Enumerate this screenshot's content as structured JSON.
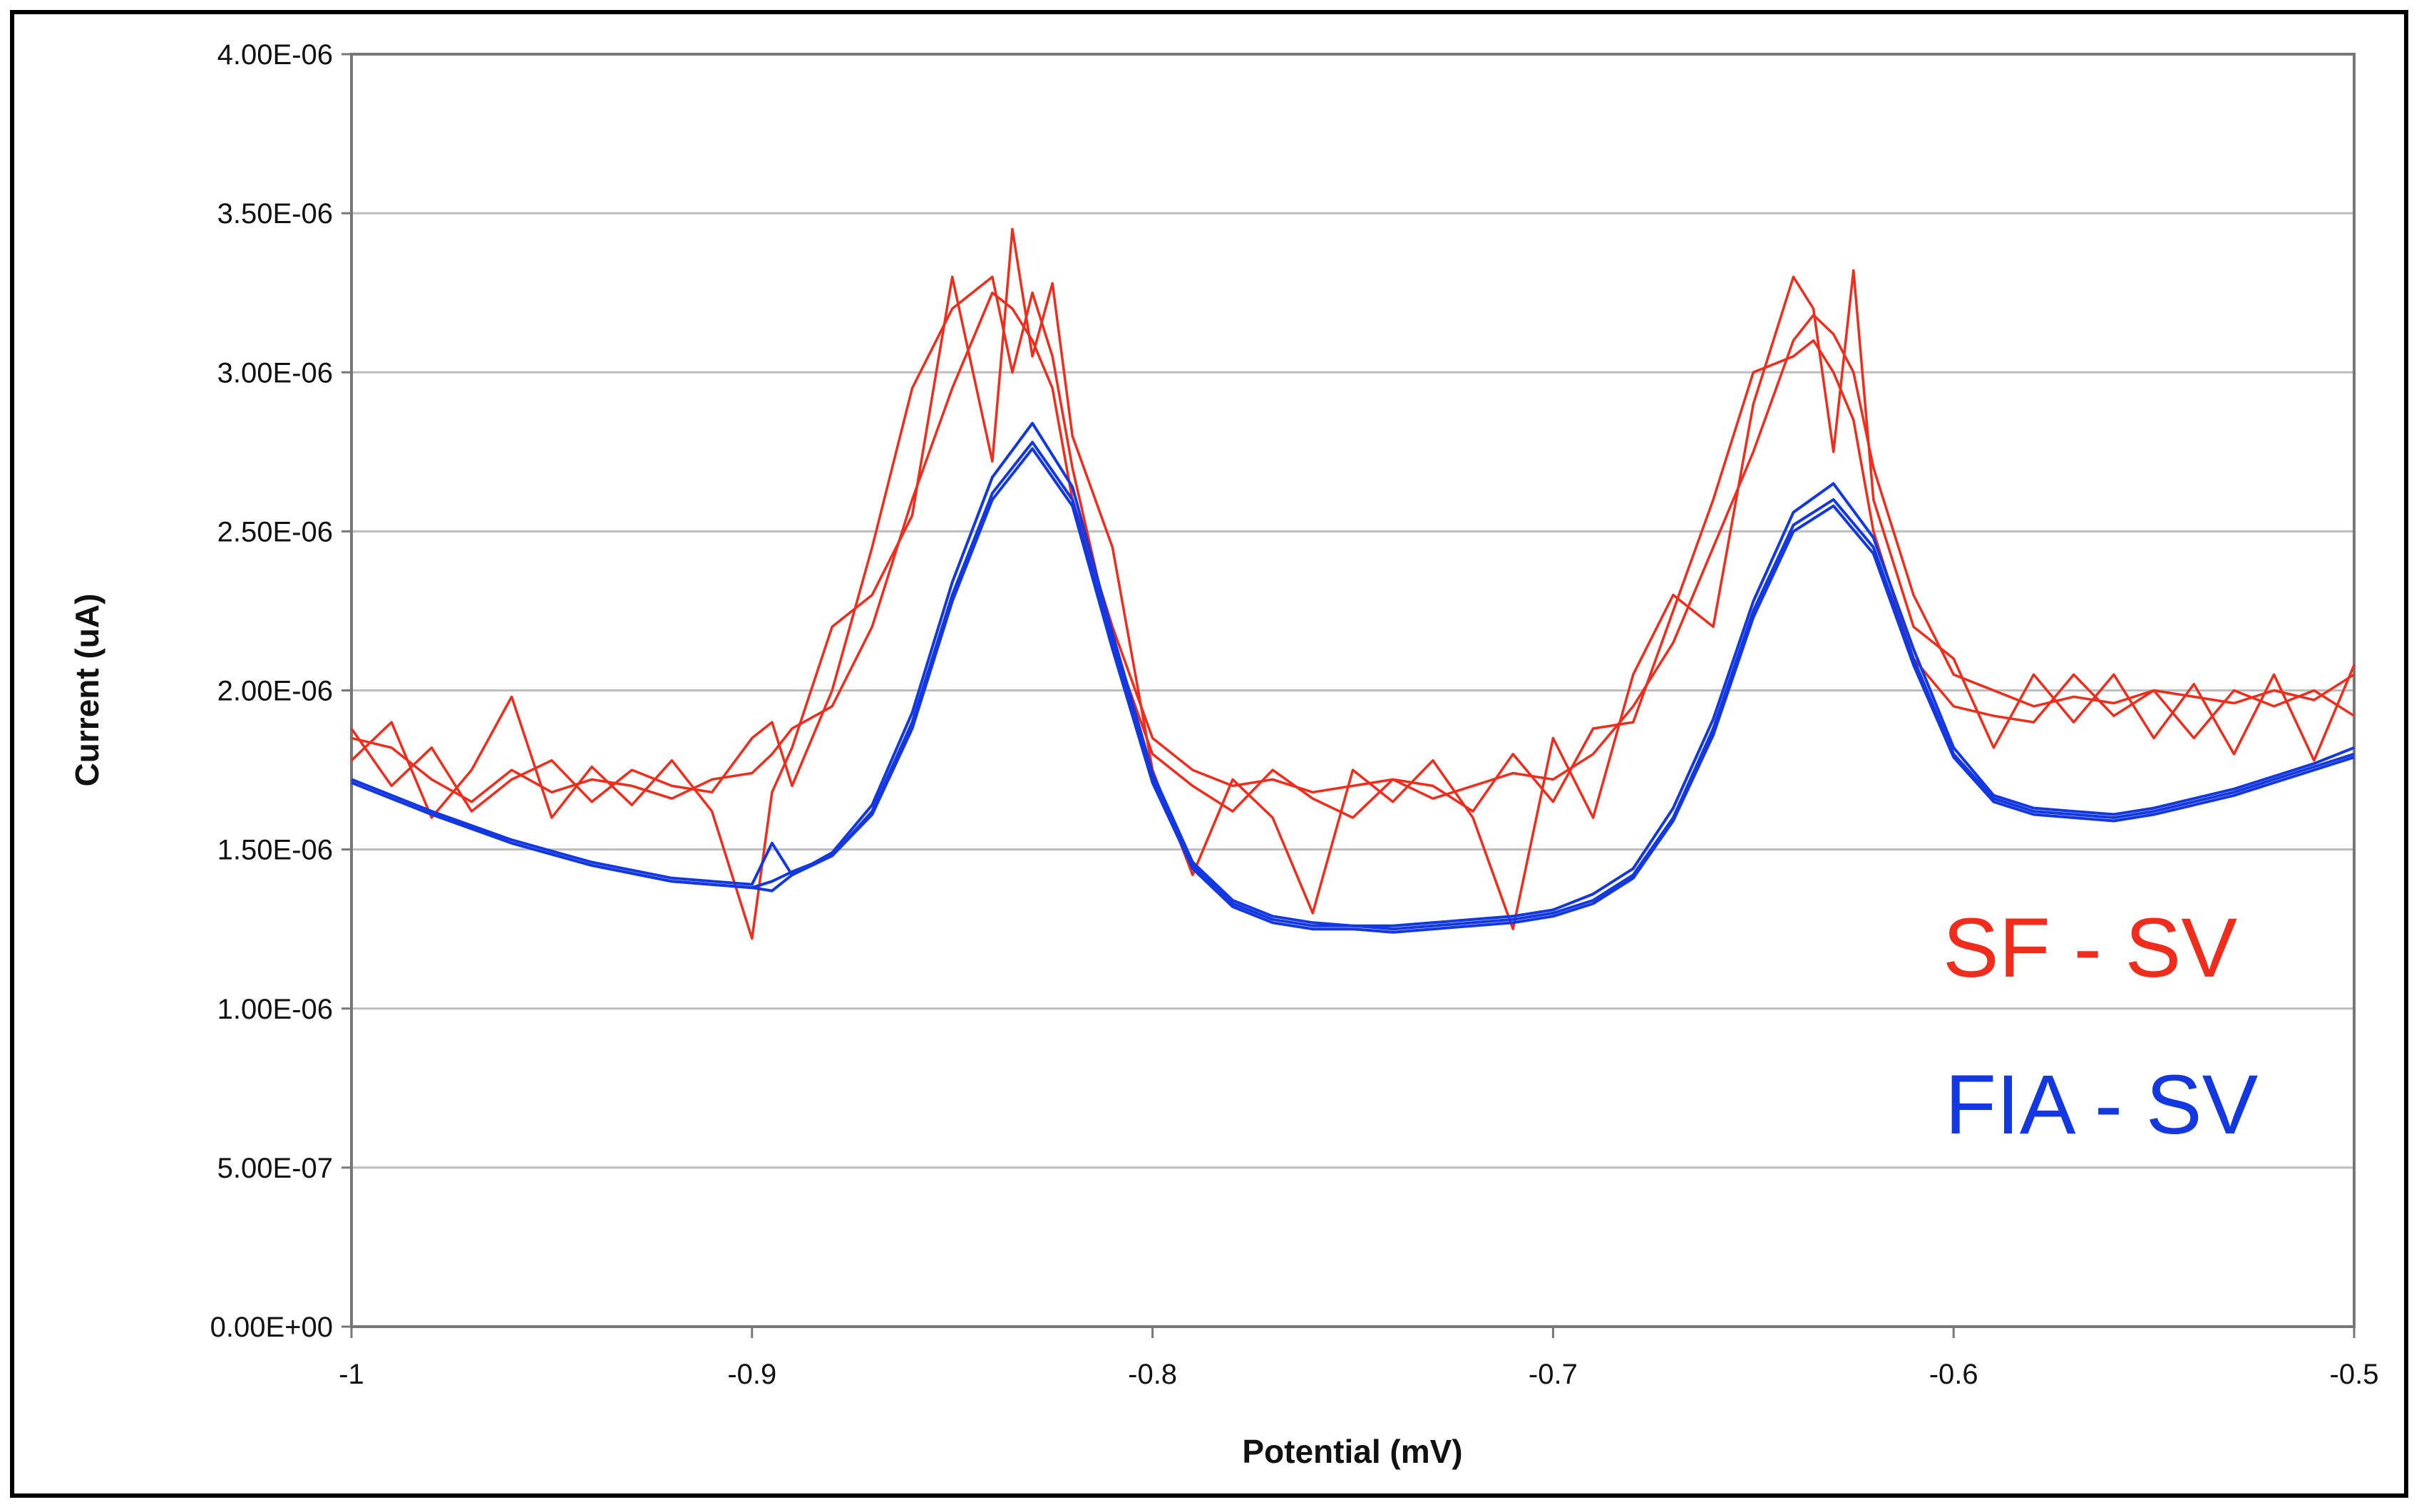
{
  "chart_data": {
    "type": "line",
    "title": "",
    "xlabel": "Potential (mV)",
    "ylabel": "Current (uA)",
    "xlim": [
      -1,
      -0.5
    ],
    "ylim": [
      0,
      4e-06
    ],
    "grid": true,
    "x_ticks": [
      "-1",
      "-0.9",
      "-0.8",
      "-0.7",
      "-0.6",
      "-0.5"
    ],
    "y_ticks": [
      "0.00E+00",
      "5.00E-07",
      "1.00E-06",
      "1.50E-06",
      "2.00E-06",
      "2.50E-06",
      "3.00E-06",
      "3.50E-06",
      "4.00E-06"
    ],
    "legend_position": "right-inside",
    "legend": [
      {
        "label": "SF - SV",
        "color": "#ee2d1c"
      },
      {
        "label": "FIA - SV",
        "color": "#1438e0"
      }
    ],
    "series": [
      {
        "name": "SF - SV run 1",
        "group": "SF - SV",
        "color": "#ee2d1c",
        "x": [
          -1.0,
          -0.99,
          -0.98,
          -0.97,
          -0.96,
          -0.95,
          -0.94,
          -0.93,
          -0.92,
          -0.91,
          -0.9,
          -0.895,
          -0.89,
          -0.88,
          -0.87,
          -0.86,
          -0.85,
          -0.84,
          -0.835,
          -0.83,
          -0.825,
          -0.82,
          -0.81,
          -0.8,
          -0.79,
          -0.78,
          -0.77,
          -0.76,
          -0.75,
          -0.74,
          -0.73,
          -0.72,
          -0.71,
          -0.7,
          -0.69,
          -0.68,
          -0.67,
          -0.66,
          -0.65,
          -0.64,
          -0.635,
          -0.63,
          -0.625,
          -0.62,
          -0.61,
          -0.6,
          -0.59,
          -0.58,
          -0.57,
          -0.56,
          -0.55,
          -0.54,
          -0.53,
          -0.52,
          -0.51,
          -0.5
        ],
        "values": [
          1.85e-06,
          1.82e-06,
          1.72e-06,
          1.65e-06,
          1.75e-06,
          1.68e-06,
          1.72e-06,
          1.7e-06,
          1.66e-06,
          1.72e-06,
          1.74e-06,
          1.8e-06,
          1.88e-06,
          1.95e-06,
          2.2e-06,
          2.6e-06,
          2.95e-06,
          3.25e-06,
          3.2e-06,
          3.1e-06,
          2.95e-06,
          2.6e-06,
          2.2e-06,
          1.85e-06,
          1.75e-06,
          1.7e-06,
          1.72e-06,
          1.68e-06,
          1.7e-06,
          1.72e-06,
          1.66e-06,
          1.7e-06,
          1.74e-06,
          1.72e-06,
          1.8e-06,
          1.95e-06,
          2.15e-06,
          2.45e-06,
          2.75e-06,
          3.1e-06,
          3.18e-06,
          3.12e-06,
          3e-06,
          2.7e-06,
          2.3e-06,
          2.05e-06,
          2e-06,
          1.95e-06,
          1.98e-06,
          1.96e-06,
          2e-06,
          1.98e-06,
          1.96e-06,
          2e-06,
          1.97e-06,
          2.05e-06
        ]
      },
      {
        "name": "SF - SV run 2",
        "group": "SF - SV",
        "color": "#ee2d1c",
        "x": [
          -1.0,
          -0.99,
          -0.98,
          -0.97,
          -0.96,
          -0.95,
          -0.94,
          -0.93,
          -0.92,
          -0.91,
          -0.9,
          -0.895,
          -0.89,
          -0.88,
          -0.87,
          -0.86,
          -0.85,
          -0.84,
          -0.835,
          -0.83,
          -0.825,
          -0.82,
          -0.81,
          -0.8,
          -0.79,
          -0.78,
          -0.77,
          -0.76,
          -0.75,
          -0.74,
          -0.73,
          -0.72,
          -0.71,
          -0.7,
          -0.69,
          -0.68,
          -0.67,
          -0.66,
          -0.65,
          -0.64,
          -0.635,
          -0.63,
          -0.625,
          -0.62,
          -0.61,
          -0.6,
          -0.59,
          -0.58,
          -0.57,
          -0.56,
          -0.55,
          -0.54,
          -0.53,
          -0.52,
          -0.51,
          -0.5
        ],
        "values": [
          1.78e-06,
          1.9e-06,
          1.6e-06,
          1.75e-06,
          1.98e-06,
          1.6e-06,
          1.76e-06,
          1.64e-06,
          1.78e-06,
          1.62e-06,
          1.22e-06,
          1.68e-06,
          1.82e-06,
          2.2e-06,
          2.3e-06,
          2.55e-06,
          3.3e-06,
          2.72e-06,
          3.45e-06,
          3.05e-06,
          3.28e-06,
          2.8e-06,
          2.45e-06,
          1.75e-06,
          1.42e-06,
          1.72e-06,
          1.6e-06,
          1.3e-06,
          1.75e-06,
          1.65e-06,
          1.78e-06,
          1.6e-06,
          1.25e-06,
          1.85e-06,
          1.6e-06,
          2.05e-06,
          2.3e-06,
          2.2e-06,
          2.9e-06,
          3.3e-06,
          3.2e-06,
          2.75e-06,
          3.32e-06,
          2.6e-06,
          2.2e-06,
          2.1e-06,
          1.82e-06,
          2.05e-06,
          1.9e-06,
          2.05e-06,
          1.85e-06,
          2.02e-06,
          1.8e-06,
          2.05e-06,
          1.78e-06,
          2.08e-06
        ]
      },
      {
        "name": "SF - SV run 3",
        "group": "SF - SV",
        "color": "#ee2d1c",
        "x": [
          -1.0,
          -0.99,
          -0.98,
          -0.97,
          -0.96,
          -0.95,
          -0.94,
          -0.93,
          -0.92,
          -0.91,
          -0.9,
          -0.895,
          -0.89,
          -0.88,
          -0.87,
          -0.86,
          -0.85,
          -0.84,
          -0.835,
          -0.83,
          -0.825,
          -0.82,
          -0.81,
          -0.8,
          -0.79,
          -0.78,
          -0.77,
          -0.76,
          -0.75,
          -0.74,
          -0.73,
          -0.72,
          -0.71,
          -0.7,
          -0.69,
          -0.68,
          -0.67,
          -0.66,
          -0.65,
          -0.64,
          -0.635,
          -0.63,
          -0.625,
          -0.62,
          -0.61,
          -0.6,
          -0.59,
          -0.58,
          -0.57,
          -0.56,
          -0.55,
          -0.54,
          -0.53,
          -0.52,
          -0.51,
          -0.5
        ],
        "values": [
          1.88e-06,
          1.7e-06,
          1.82e-06,
          1.62e-06,
          1.72e-06,
          1.78e-06,
          1.65e-06,
          1.75e-06,
          1.7e-06,
          1.68e-06,
          1.85e-06,
          1.9e-06,
          1.7e-06,
          2e-06,
          2.45e-06,
          2.95e-06,
          3.2e-06,
          3.3e-06,
          3e-06,
          3.25e-06,
          3.05e-06,
          2.7e-06,
          2.15e-06,
          1.8e-06,
          1.7e-06,
          1.62e-06,
          1.75e-06,
          1.66e-06,
          1.6e-06,
          1.72e-06,
          1.7e-06,
          1.62e-06,
          1.8e-06,
          1.65e-06,
          1.88e-06,
          1.9e-06,
          2.25e-06,
          2.6e-06,
          3e-06,
          3.05e-06,
          3.1e-06,
          3e-06,
          2.85e-06,
          2.5e-06,
          2.1e-06,
          1.95e-06,
          1.92e-06,
          1.9e-06,
          2.05e-06,
          1.92e-06,
          2e-06,
          1.85e-06,
          2e-06,
          1.95e-06,
          2e-06,
          1.92e-06
        ]
      },
      {
        "name": "FIA - SV run 1",
        "group": "FIA - SV",
        "color": "#1438e0",
        "x": [
          -1.0,
          -0.98,
          -0.96,
          -0.94,
          -0.92,
          -0.9,
          -0.895,
          -0.89,
          -0.88,
          -0.87,
          -0.86,
          -0.85,
          -0.84,
          -0.83,
          -0.82,
          -0.81,
          -0.8,
          -0.79,
          -0.78,
          -0.77,
          -0.76,
          -0.75,
          -0.74,
          -0.73,
          -0.72,
          -0.71,
          -0.7,
          -0.69,
          -0.68,
          -0.67,
          -0.66,
          -0.65,
          -0.64,
          -0.63,
          -0.62,
          -0.61,
          -0.6,
          -0.59,
          -0.58,
          -0.57,
          -0.56,
          -0.55,
          -0.54,
          -0.53,
          -0.52,
          -0.51,
          -0.5
        ],
        "values": [
          1.72e-06,
          1.62e-06,
          1.52e-06,
          1.45e-06,
          1.4e-06,
          1.38e-06,
          1.4e-06,
          1.43e-06,
          1.48e-06,
          1.62e-06,
          1.9e-06,
          2.3e-06,
          2.62e-06,
          2.78e-06,
          2.6e-06,
          2.15e-06,
          1.72e-06,
          1.45e-06,
          1.33e-06,
          1.28e-06,
          1.26e-06,
          1.26e-06,
          1.25e-06,
          1.26e-06,
          1.27e-06,
          1.28e-06,
          1.3e-06,
          1.34e-06,
          1.42e-06,
          1.6e-06,
          1.88e-06,
          2.25e-06,
          2.52e-06,
          2.6e-06,
          2.45e-06,
          2.1e-06,
          1.8e-06,
          1.66e-06,
          1.62e-06,
          1.61e-06,
          1.6e-06,
          1.62e-06,
          1.65e-06,
          1.68e-06,
          1.72e-06,
          1.76e-06,
          1.8e-06
        ]
      },
      {
        "name": "FIA - SV run 2",
        "group": "FIA - SV",
        "color": "#1438e0",
        "x": [
          -1.0,
          -0.98,
          -0.96,
          -0.94,
          -0.92,
          -0.9,
          -0.895,
          -0.89,
          -0.88,
          -0.87,
          -0.86,
          -0.85,
          -0.84,
          -0.83,
          -0.82,
          -0.81,
          -0.8,
          -0.79,
          -0.78,
          -0.77,
          -0.76,
          -0.75,
          -0.74,
          -0.73,
          -0.72,
          -0.71,
          -0.7,
          -0.69,
          -0.68,
          -0.67,
          -0.66,
          -0.65,
          -0.64,
          -0.63,
          -0.62,
          -0.61,
          -0.6,
          -0.59,
          -0.58,
          -0.57,
          -0.56,
          -0.55,
          -0.54,
          -0.53,
          -0.52,
          -0.51,
          -0.5
        ],
        "values": [
          1.72e-06,
          1.62e-06,
          1.53e-06,
          1.46e-06,
          1.41e-06,
          1.39e-06,
          1.52e-06,
          1.42e-06,
          1.49e-06,
          1.64e-06,
          1.93e-06,
          2.34e-06,
          2.67e-06,
          2.84e-06,
          2.64e-06,
          2.18e-06,
          1.74e-06,
          1.46e-06,
          1.34e-06,
          1.29e-06,
          1.27e-06,
          1.26e-06,
          1.26e-06,
          1.27e-06,
          1.28e-06,
          1.29e-06,
          1.31e-06,
          1.36e-06,
          1.44e-06,
          1.63e-06,
          1.91e-06,
          2.28e-06,
          2.56e-06,
          2.65e-06,
          2.48e-06,
          2.13e-06,
          1.82e-06,
          1.67e-06,
          1.63e-06,
          1.62e-06,
          1.61e-06,
          1.63e-06,
          1.66e-06,
          1.69e-06,
          1.73e-06,
          1.77e-06,
          1.82e-06
        ]
      },
      {
        "name": "FIA - SV run 3",
        "group": "FIA - SV",
        "color": "#1438e0",
        "x": [
          -1.0,
          -0.98,
          -0.96,
          -0.94,
          -0.92,
          -0.9,
          -0.895,
          -0.89,
          -0.88,
          -0.87,
          -0.86,
          -0.85,
          -0.84,
          -0.83,
          -0.82,
          -0.81,
          -0.8,
          -0.79,
          -0.78,
          -0.77,
          -0.76,
          -0.75,
          -0.74,
          -0.73,
          -0.72,
          -0.71,
          -0.7,
          -0.69,
          -0.68,
          -0.67,
          -0.66,
          -0.65,
          -0.64,
          -0.63,
          -0.62,
          -0.61,
          -0.6,
          -0.59,
          -0.58,
          -0.57,
          -0.56,
          -0.55,
          -0.54,
          -0.53,
          -0.52,
          -0.51,
          -0.5
        ],
        "values": [
          1.71e-06,
          1.61e-06,
          1.52e-06,
          1.45e-06,
          1.4e-06,
          1.38e-06,
          1.37e-06,
          1.42e-06,
          1.48e-06,
          1.61e-06,
          1.88e-06,
          2.28e-06,
          2.6e-06,
          2.76e-06,
          2.58e-06,
          2.13e-06,
          1.71e-06,
          1.44e-06,
          1.32e-06,
          1.27e-06,
          1.25e-06,
          1.25e-06,
          1.24e-06,
          1.25e-06,
          1.26e-06,
          1.27e-06,
          1.29e-06,
          1.33e-06,
          1.41e-06,
          1.59e-06,
          1.86e-06,
          2.23e-06,
          2.5e-06,
          2.58e-06,
          2.43e-06,
          2.08e-06,
          1.79e-06,
          1.65e-06,
          1.61e-06,
          1.6e-06,
          1.59e-06,
          1.61e-06,
          1.64e-06,
          1.67e-06,
          1.71e-06,
          1.75e-06,
          1.79e-06
        ]
      }
    ]
  }
}
